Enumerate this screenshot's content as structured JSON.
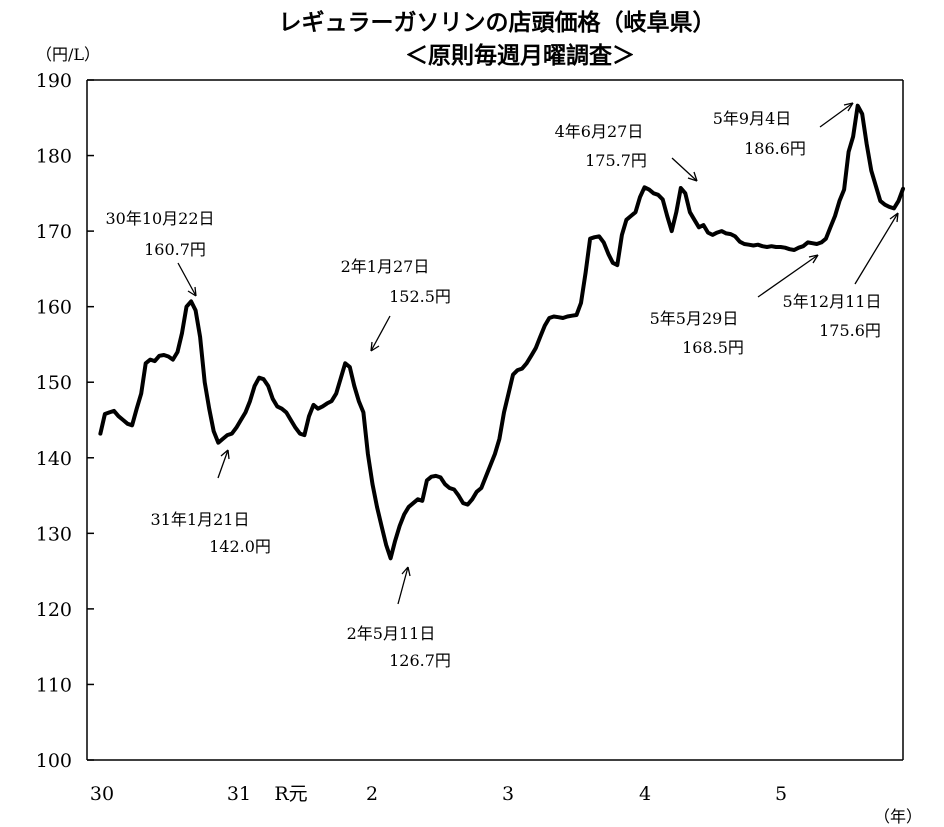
{
  "chart_data": {
    "type": "line",
    "title": "レギュラーガソリンの店頭価格（岐阜県）",
    "subtitle": "＜原則毎週月曜調査＞",
    "ylabel": "（円/L）",
    "xlabel": "（年）",
    "ylim": [
      100,
      190
    ],
    "yticks": [
      "100",
      "110",
      "120",
      "130",
      "140",
      "150",
      "160",
      "170",
      "180",
      "190"
    ],
    "xticks": [
      "30",
      "31",
      "R元",
      "2",
      "3",
      "4",
      "5"
    ],
    "grid": false,
    "series": [
      {
        "values": [
          143.2,
          145.8,
          146.0,
          146.2,
          145.5,
          145.0,
          144.5,
          144.3,
          146.5,
          148.5,
          152.5,
          153.0,
          152.8,
          153.5,
          153.6,
          153.4,
          153.0,
          154.0,
          156.5,
          160.0,
          160.7,
          159.5,
          156.0,
          150.0,
          146.5,
          143.5,
          142.0,
          142.5,
          143.0,
          143.2,
          144.0,
          145.0,
          146.0,
          147.5,
          149.5,
          150.6,
          150.4,
          149.5,
          147.8,
          146.8,
          146.5,
          146.0,
          145.0,
          144.0,
          143.2,
          143.0,
          145.5,
          147.0,
          146.5,
          146.8,
          147.2,
          147.5,
          148.5,
          150.5,
          152.5,
          152.0,
          149.5,
          147.5,
          146.0,
          140.5,
          136.5,
          133.5,
          131.0,
          128.5,
          126.7,
          129.0,
          131.0,
          132.5,
          133.5,
          134.0,
          134.5,
          134.3,
          137.0,
          137.5,
          137.6,
          137.4,
          136.5,
          136.0,
          135.8,
          135.0,
          134.0,
          133.8,
          134.5,
          135.5,
          136.0,
          137.5,
          139.0,
          140.5,
          142.5,
          146.0,
          148.5,
          151.0,
          151.6,
          151.8,
          152.5,
          153.5,
          154.5,
          156.0,
          157.5,
          158.5,
          158.7,
          158.6,
          158.5,
          158.7,
          158.8,
          158.9,
          160.5,
          164.5,
          169.0,
          169.2,
          169.3,
          168.5,
          167.0,
          165.8,
          165.5,
          169.5,
          171.5,
          172.0,
          172.5,
          174.5,
          175.8,
          175.5,
          175.0,
          174.8,
          174.2,
          172.0,
          170.0,
          172.5,
          175.7,
          175.0,
          172.5,
          171.5,
          170.5,
          170.8,
          169.8,
          169.5,
          169.8,
          170.0,
          169.7,
          169.6,
          169.3,
          168.6,
          168.3,
          168.2,
          168.1,
          168.2,
          168.0,
          167.9,
          168.0,
          167.9,
          167.9,
          167.8,
          167.6,
          167.5,
          167.8,
          168.0,
          168.5,
          168.4,
          168.3,
          168.5,
          169.0,
          170.5,
          172.0,
          174.0,
          175.5,
          180.5,
          182.5,
          186.6,
          185.5,
          181.5,
          178.0,
          176.0,
          174.0,
          173.5,
          173.2,
          173.0,
          174.0,
          175.6
        ],
        "x_start": 30.0,
        "x_end": 36.0
      }
    ],
    "annotations": [
      {
        "date": "30年10月22日",
        "value": "160.7円"
      },
      {
        "date": "31年1月21日",
        "value": "142.0円"
      },
      {
        "date": "2年1月27日",
        "value": "152.5円"
      },
      {
        "date": "2年5月11日",
        "value": "126.7円"
      },
      {
        "date": "4年6月27日",
        "value": "175.7円"
      },
      {
        "date": "5年9月4日",
        "value": "186.6円"
      },
      {
        "date": "5年5月29日",
        "value": "168.5円"
      },
      {
        "date": "5年12月11日",
        "value": "175.6円"
      }
    ]
  }
}
